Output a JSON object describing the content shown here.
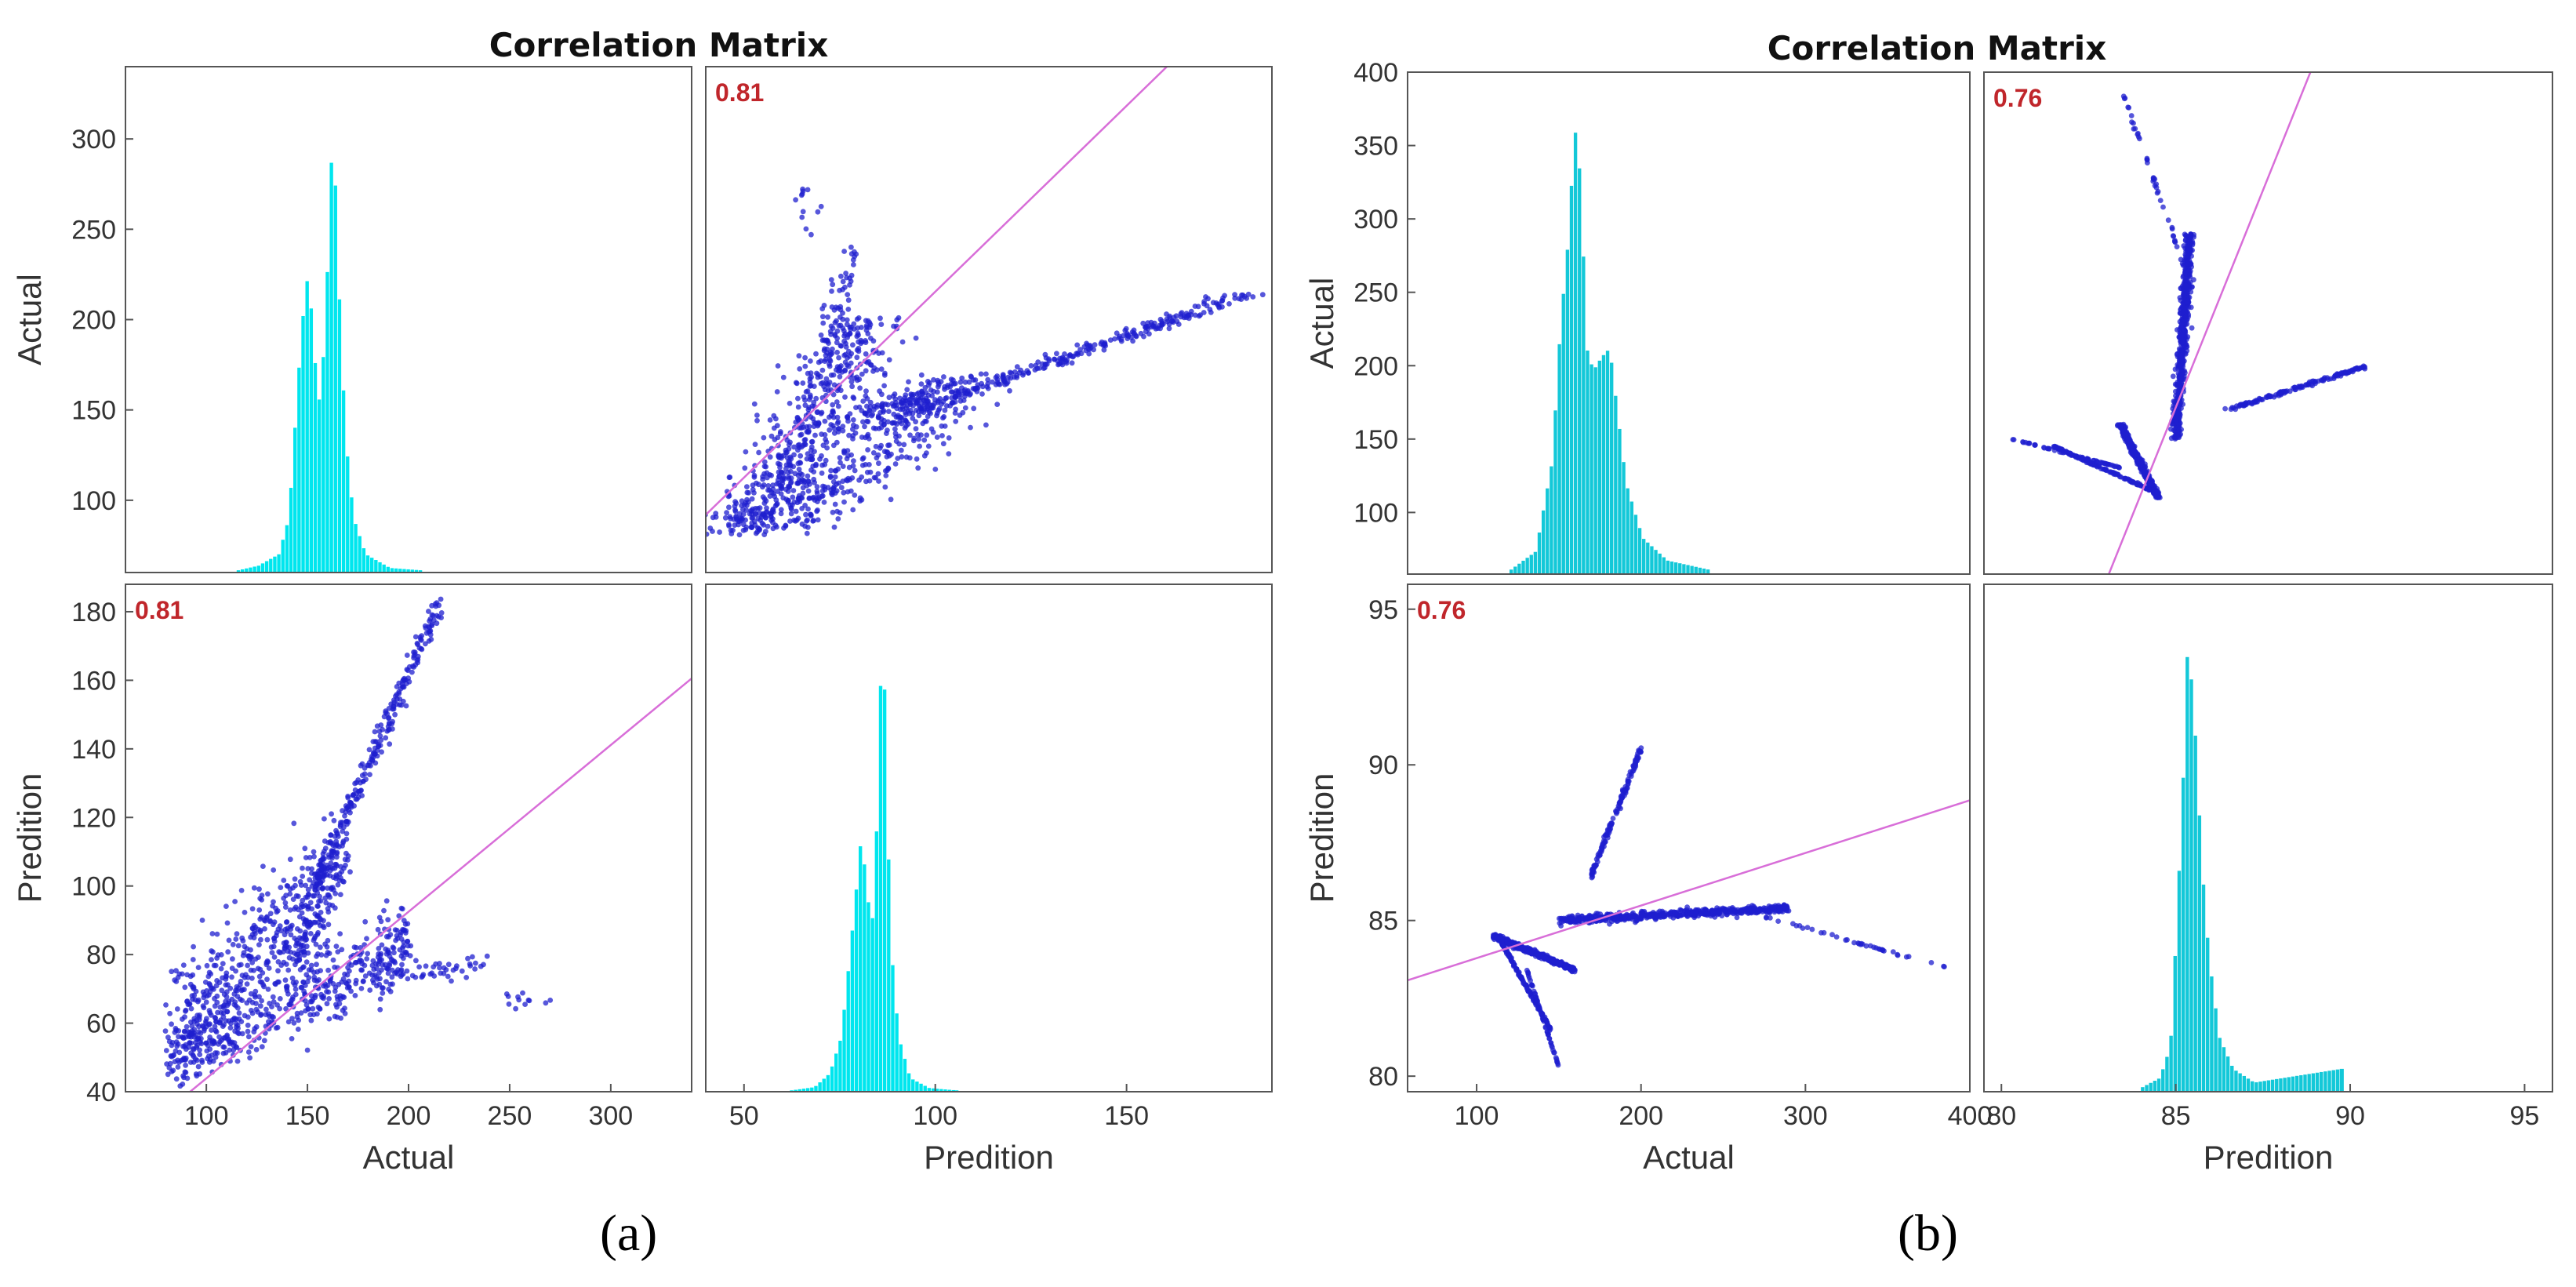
{
  "panel_labels": [
    "(a)",
    "(b)"
  ],
  "chart_data": [
    {
      "type": "scatter",
      "title": "Correlation Matrix",
      "variables": [
        "Actual",
        "Predition"
      ],
      "correlation": 0.81,
      "correlation_label": "0.81",
      "ranges": {
        "Actual": [
          60,
          340
        ],
        "Predition": [
          40,
          188
        ]
      },
      "ticks": {
        "Actual": [
          100,
          150,
          200,
          250,
          300
        ],
        "Predition": [
          50,
          100,
          150
        ]
      },
      "ytick_labels": {
        "top": [
          "100",
          "150",
          "200",
          "250",
          "300"
        ],
        "bottom": [
          "40",
          "60",
          "80",
          "100",
          "120",
          "140",
          "160",
          "180"
        ]
      },
      "ytick_values": {
        "top": [
          100,
          150,
          200,
          250,
          300
        ],
        "bottom": [
          40,
          60,
          80,
          100,
          120,
          140,
          160,
          180
        ]
      },
      "xtick_labels": {
        "left": [
          "100",
          "150",
          "200",
          "250",
          "300"
        ],
        "right": [
          "50",
          "100",
          "150"
        ]
      },
      "xtick_values": {
        "left": [
          100,
          150,
          200,
          250,
          300
        ],
        "right": [
          50,
          100,
          150
        ]
      },
      "xlabels": [
        "Actual",
        "Predition"
      ],
      "ylabels": [
        "Actual",
        "Predition"
      ],
      "fit_line": {
        "intercept": -4.7,
        "slope": 0.486
      },
      "hist_actual": {
        "bins": [
          [
            115,
            0.005
          ],
          [
            125,
            0.015
          ],
          [
            135,
            0.04
          ],
          [
            140,
            0.12
          ],
          [
            145,
            0.45
          ],
          [
            148,
            0.62
          ],
          [
            150,
            0.66
          ],
          [
            152,
            0.5
          ],
          [
            155,
            0.38
          ],
          [
            158,
            0.52
          ],
          [
            160,
            0.8
          ],
          [
            162,
            1.0
          ],
          [
            164,
            0.7
          ],
          [
            166,
            0.5
          ],
          [
            168,
            0.3
          ],
          [
            172,
            0.12
          ],
          [
            178,
            0.04
          ],
          [
            190,
            0.01
          ],
          [
            205,
            0.005
          ]
        ]
      },
      "hist_prediction": {
        "bins": [
          [
            62,
            0.003
          ],
          [
            68,
            0.01
          ],
          [
            72,
            0.04
          ],
          [
            75,
            0.12
          ],
          [
            77,
            0.28
          ],
          [
            79,
            0.45
          ],
          [
            80,
            0.54
          ],
          [
            81,
            0.5
          ],
          [
            82,
            0.42
          ],
          [
            83,
            0.36
          ],
          [
            84,
            0.5
          ],
          [
            85,
            0.85
          ],
          [
            86,
            1.0
          ],
          [
            87,
            0.62
          ],
          [
            88,
            0.32
          ],
          [
            90,
            0.12
          ],
          [
            93,
            0.03
          ],
          [
            98,
            0.008
          ],
          [
            105,
            0.003
          ]
        ]
      },
      "scatter_clusters": [
        {
          "actual": [
            80,
            200
          ],
          "prediction": [
            50,
            82
          ],
          "spread": 6,
          "n": 520
        },
        {
          "actual": [
            150,
            215
          ],
          "prediction": [
            95,
            182
          ],
          "spread": 2.5,
          "n": 280
        },
        {
          "actual": [
            85,
            160
          ],
          "prediction": [
            60,
            100
          ],
          "spread": 9,
          "n": 380
        },
        {
          "actual": [
            140,
            170
          ],
          "prediction": [
            75,
            110
          ],
          "spread": 5,
          "n": 120
        },
        {
          "actual": [
            180,
            240
          ],
          "prediction": [
            72,
            78
          ],
          "spread": 2,
          "n": 50
        },
        {
          "actual": [
            240,
            272
          ],
          "prediction": [
            68,
            66
          ],
          "spread": 1.5,
          "n": 12
        }
      ],
      "colors": {
        "hist": "#00e6ee",
        "points": "#1f1fcf",
        "fit": "#d86ed8",
        "corr": "#c0262b"
      }
    },
    {
      "type": "scatter",
      "title": "Correlation Matrix",
      "variables": [
        "Actual",
        "Predition"
      ],
      "correlation": 0.76,
      "correlation_label": "0.76",
      "ranges": {
        "Actual": [
          58,
          400
        ],
        "Predition": [
          79.5,
          95.8
        ]
      },
      "ticks": {
        "Actual": [
          100,
          200,
          300,
          400
        ],
        "Predition": [
          80,
          85,
          90,
          95
        ]
      },
      "ytick_labels": {
        "top": [
          "100",
          "150",
          "200",
          "250",
          "300",
          "350",
          "400"
        ],
        "bottom": [
          "80",
          "85",
          "90",
          "95"
        ]
      },
      "ytick_values": {
        "top": [
          100,
          150,
          200,
          250,
          300,
          350,
          400
        ],
        "bottom": [
          80,
          85,
          90,
          95
        ]
      },
      "xtick_labels": {
        "left": [
          "100",
          "200",
          "300",
          "400"
        ],
        "right": [
          "80",
          "85",
          "90",
          "95"
        ]
      },
      "xtick_values": {
        "left": [
          100,
          200,
          300,
          400
        ],
        "right": [
          80,
          85,
          90,
          95
        ]
      },
      "xlabels": [
        "Actual",
        "Predition"
      ],
      "ylabels": [
        "Actual",
        "Predition"
      ],
      "fit_line": {
        "intercept": 82.1,
        "slope": 0.0169
      },
      "hist_actual": {
        "bins": [
          [
            120,
            0.01
          ],
          [
            135,
            0.05
          ],
          [
            145,
            0.25
          ],
          [
            150,
            0.55
          ],
          [
            155,
            0.75
          ],
          [
            158,
            0.95
          ],
          [
            160,
            1.0
          ],
          [
            163,
            0.8
          ],
          [
            166,
            0.5
          ],
          [
            170,
            0.45
          ],
          [
            175,
            0.48
          ],
          [
            180,
            0.5
          ],
          [
            185,
            0.35
          ],
          [
            190,
            0.2
          ],
          [
            200,
            0.08
          ],
          [
            215,
            0.03
          ],
          [
            240,
            0.01
          ]
        ]
      },
      "hist_prediction": {
        "bins": [
          [
            84,
            0.01
          ],
          [
            84.5,
            0.03
          ],
          [
            84.8,
            0.1
          ],
          [
            85,
            0.4
          ],
          [
            85.2,
            0.75
          ],
          [
            85.3,
            1.0
          ],
          [
            85.5,
            0.8
          ],
          [
            85.7,
            0.5
          ],
          [
            85.9,
            0.3
          ],
          [
            86.2,
            0.12
          ],
          [
            86.6,
            0.05
          ],
          [
            87.2,
            0.02
          ],
          [
            89.7,
            0.05
          ]
        ]
      },
      "scatter_clusters": [
        {
          "actual": [
            110,
            160
          ],
          "prediction": [
            84.5,
            83.4
          ],
          "spread": 0.4,
          "n": 420
        },
        {
          "actual": [
            115,
            145
          ],
          "prediction": [
            84.3,
            81.5
          ],
          "spread": 0.3,
          "n": 130
        },
        {
          "actual": [
            130,
            150
          ],
          "prediction": [
            83.5,
            80.3
          ],
          "spread": 0.15,
          "n": 55
        },
        {
          "actual": [
            150,
            290
          ],
          "prediction": [
            85.0,
            85.4
          ],
          "spread": 0.6,
          "n": 560
        },
        {
          "actual": [
            170,
            200
          ],
          "prediction": [
            86.5,
            90.5
          ],
          "spread": 0.8,
          "n": 140
        },
        {
          "actual": [
            270,
            385
          ],
          "prediction": [
            85.2,
            83.5
          ],
          "spread": 0.2,
          "n": 40
        }
      ],
      "colors": {
        "hist": "#13c8d8",
        "points": "#1f1fcf",
        "fit": "#d86ed8",
        "corr": "#c0262b"
      }
    }
  ]
}
